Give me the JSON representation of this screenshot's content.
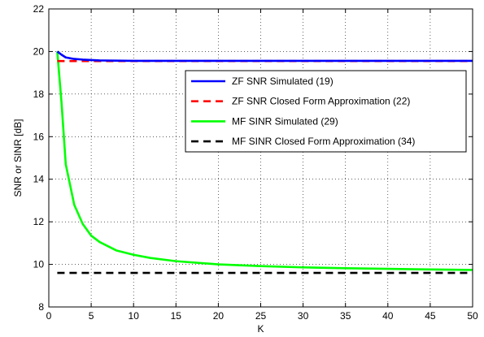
{
  "chart_data": {
    "type": "line",
    "title": "",
    "xlabel": "K",
    "ylabel": "SNR or SINR [dB]",
    "xlim": [
      0,
      50
    ],
    "ylim": [
      8,
      22
    ],
    "xticks": [
      0,
      5,
      10,
      15,
      20,
      25,
      30,
      35,
      40,
      45,
      50
    ],
    "yticks": [
      8,
      10,
      12,
      14,
      16,
      18,
      20,
      22
    ],
    "grid": true,
    "legend_position": "top-right",
    "series": [
      {
        "name": "ZF SNR Simulated (19)",
        "color": "#0000ff",
        "style": "solid",
        "x": [
          1,
          1.5,
          2,
          3,
          4,
          5,
          6,
          8,
          10,
          15,
          20,
          30,
          40,
          50
        ],
        "y": [
          20.0,
          19.85,
          19.72,
          19.65,
          19.62,
          19.6,
          19.58,
          19.57,
          19.56,
          19.56,
          19.56,
          19.56,
          19.56,
          19.56
        ]
      },
      {
        "name": "ZF SNR Closed Form Approximation (22)",
        "color": "#ff0000",
        "style": "dashed",
        "x": [
          1,
          50
        ],
        "y": [
          19.55,
          19.55
        ]
      },
      {
        "name": "MF SINR Simulated (29)",
        "color": "#00ff00",
        "style": "solid",
        "x": [
          1,
          1.5,
          2,
          3,
          4,
          5,
          6,
          7,
          8,
          10,
          12,
          15,
          20,
          25,
          30,
          35,
          40,
          45,
          50
        ],
        "y": [
          20.0,
          17.6,
          14.7,
          12.8,
          11.9,
          11.35,
          11.05,
          10.85,
          10.65,
          10.45,
          10.3,
          10.15,
          10.0,
          9.92,
          9.86,
          9.82,
          9.79,
          9.76,
          9.74
        ]
      },
      {
        "name": "MF SINR Closed Form Approximation (34)",
        "color": "#000000",
        "style": "dashed",
        "x": [
          1,
          50
        ],
        "y": [
          9.6,
          9.6
        ]
      }
    ]
  }
}
